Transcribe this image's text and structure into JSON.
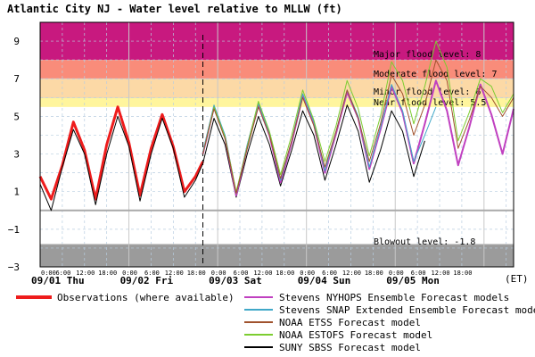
{
  "chart_data": {
    "type": "line",
    "title": "Atlantic City NJ  -  Water level relative to MLLW (ft)",
    "ylim": [
      -3,
      10
    ],
    "y_ticks": [
      9,
      7,
      5,
      3,
      1,
      -1,
      -3
    ],
    "timezone_label": "(ET)",
    "day_labels": [
      "09/01 Thu",
      "09/02 Fri",
      "09/03 Sat",
      "09/04 Sun",
      "09/05 Mon"
    ],
    "hour_tick_labels": [
      "0:00",
      "6:00",
      "12:00",
      "18:00",
      "0:00",
      "6:00",
      "12:00",
      "18:00",
      "0:00",
      "6:00",
      "12:00",
      "18:00",
      "0:00",
      "6:00",
      "12:00",
      "18:00",
      "0:00",
      "6:00",
      "12:00",
      "18:00"
    ],
    "x_range_hours": [
      0,
      128
    ],
    "now_hours": 44,
    "grid": true,
    "levels": [
      {
        "label": "Major flood level: 8",
        "value": 8,
        "color": "#c8197f"
      },
      {
        "label": "Moderate flood level: 7",
        "value": 7,
        "color": "#f98c7a"
      },
      {
        "label": "Minor flood level: 6",
        "value": 6,
        "color": "#fcd9a6"
      },
      {
        "label": "Near flood level: 5.5",
        "value": 5.5,
        "color": "#fff59d"
      },
      {
        "label": "Blowout level: -1.8",
        "value": -1.8,
        "color": "#9b9b9b"
      }
    ],
    "series": [
      {
        "name": "Observations (where available)",
        "color": "#ee1c1c",
        "x": [
          0,
          3,
          6,
          9,
          12,
          15,
          18,
          21,
          24,
          27,
          30,
          33,
          36,
          39,
          42,
          44
        ],
        "y": [
          1.8,
          0.6,
          2.4,
          4.7,
          3.2,
          0.6,
          3.5,
          5.5,
          3.6,
          0.8,
          3.3,
          5.1,
          3.4,
          1.0,
          1.8,
          2.6
        ]
      },
      {
        "name": "Stevens NYHOPS Ensemble Forecast models",
        "color": "#c040c0",
        "x": [
          44,
          47,
          50,
          53,
          56,
          59,
          62,
          65,
          68,
          71,
          74,
          77,
          80,
          83,
          86,
          89,
          92,
          95,
          98,
          101,
          104,
          107,
          110,
          113,
          116,
          119,
          122,
          125,
          128
        ],
        "y": [
          3.0,
          5.5,
          3.9,
          0.8,
          3.4,
          5.6,
          4.0,
          1.5,
          3.6,
          6.1,
          4.6,
          2.0,
          4.1,
          6.3,
          4.9,
          2.2,
          4.3,
          6.6,
          5.2,
          2.5,
          4.6,
          6.9,
          5.3,
          2.4,
          4.4,
          6.7,
          5.1,
          3.0,
          5.4
        ]
      },
      {
        "name": "Stevens SNAP Extended Ensemble Forecast models",
        "color": "#40a8c8",
        "x": [
          44,
          47,
          50,
          53,
          56,
          59,
          62,
          65,
          68,
          71,
          74,
          77,
          80,
          83,
          86,
          89,
          92,
          95,
          98,
          101,
          104,
          107
        ],
        "y": [
          3.1,
          5.6,
          4.0,
          0.9,
          3.5,
          5.7,
          4.1,
          1.6,
          3.7,
          6.2,
          4.7,
          2.1,
          4.2,
          6.4,
          5.0,
          2.3,
          4.4,
          6.7,
          5.3,
          2.6,
          4.0,
          5.5
        ]
      },
      {
        "name": "NOAA ETSS Forecast model",
        "color": "#a0522d",
        "x": [
          44,
          47,
          50,
          53,
          56,
          59,
          62,
          65,
          68,
          71,
          74,
          77,
          80,
          83,
          86,
          89,
          92,
          95,
          98,
          101,
          104,
          107,
          110,
          113,
          116,
          119,
          122,
          125,
          128
        ],
        "y": [
          3.0,
          5.4,
          3.8,
          0.9,
          3.3,
          5.5,
          4.0,
          1.7,
          3.7,
          6.0,
          4.5,
          2.3,
          4.2,
          6.4,
          4.9,
          2.6,
          4.6,
          7.2,
          6.2,
          4.0,
          5.6,
          8.0,
          6.9,
          3.3,
          4.8,
          6.6,
          6.0,
          5.0,
          6.0
        ]
      },
      {
        "name": "NOAA ESTOFS Forecast model",
        "color": "#7ccd30",
        "x": [
          44,
          47,
          50,
          53,
          56,
          59,
          62,
          65,
          68,
          71,
          74,
          77,
          80,
          83,
          86,
          89,
          92,
          95,
          98,
          101,
          104,
          107,
          110,
          113,
          116,
          119,
          122,
          125,
          128
        ],
        "y": [
          3.0,
          5.5,
          3.9,
          1.0,
          3.4,
          5.8,
          4.2,
          1.9,
          4.0,
          6.4,
          4.8,
          2.6,
          4.5,
          6.9,
          5.4,
          2.9,
          5.0,
          7.9,
          6.9,
          4.6,
          6.6,
          9.0,
          7.6,
          3.7,
          5.2,
          7.0,
          6.6,
          5.2,
          6.2
        ]
      },
      {
        "name": "SUNY SBSS Forecast model",
        "color": "#000000",
        "x": [
          0,
          3,
          6,
          9,
          12,
          15,
          18,
          21,
          24,
          27,
          30,
          33,
          36,
          39,
          42,
          44,
          47,
          50,
          53,
          56,
          59,
          62,
          65,
          68,
          71,
          74,
          77,
          80,
          83,
          86,
          89,
          92,
          95,
          98,
          101,
          104
        ],
        "y": [
          1.4,
          0.0,
          2.3,
          4.3,
          3.0,
          0.3,
          3.0,
          5.0,
          3.4,
          0.5,
          3.0,
          4.9,
          3.3,
          0.7,
          1.6,
          2.5,
          4.9,
          3.5,
          0.7,
          3.0,
          5.0,
          3.5,
          1.3,
          3.2,
          5.3,
          4.0,
          1.6,
          3.5,
          5.6,
          4.2,
          1.5,
          3.2,
          5.3,
          4.2,
          1.8,
          3.7
        ]
      }
    ]
  }
}
